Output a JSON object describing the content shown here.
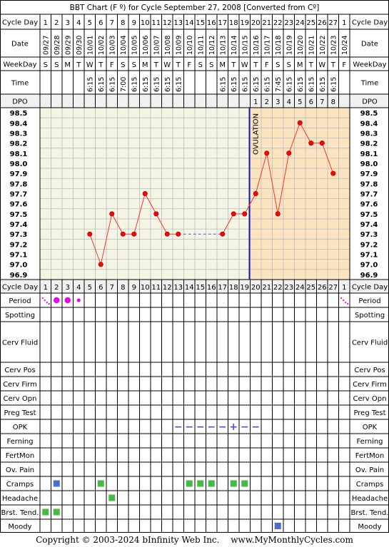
{
  "title": "BBT Chart (F º) for Cycle September 27, 2008  [Converted from Cº]",
  "row_labels": {
    "cycle_day": "Cycle Day",
    "date": "Date",
    "weekday": "WeekDay",
    "time": "Time",
    "dpo": "DPO"
  },
  "columns": {
    "cycle_days": [
      "1",
      "2",
      "3",
      "4",
      "5",
      "6",
      "7",
      "8",
      "9",
      "10",
      "11",
      "12",
      "13",
      "14",
      "15",
      "16",
      "17",
      "18",
      "19",
      "20",
      "21",
      "22",
      "23",
      "24",
      "25",
      "26",
      "27",
      "1"
    ],
    "dates": [
      "09/27",
      "09/28",
      "09/29",
      "09/30",
      "10/01",
      "10/02",
      "10/03",
      "10/04",
      "10/05",
      "10/06",
      "10/07",
      "10/08",
      "10/09",
      "10/10",
      "10/11",
      "10/12",
      "10/13",
      "10/14",
      "10/15",
      "10/16",
      "10/17",
      "10/18",
      "10/19",
      "10/20",
      "10/21",
      "10/22",
      "10/23",
      "10/24"
    ],
    "weekdays": [
      "S",
      "S",
      "M",
      "T",
      "W",
      "T",
      "F",
      "S",
      "S",
      "M",
      "T",
      "W",
      "T",
      "F",
      "S",
      "S",
      "M",
      "T",
      "W",
      "T",
      "F",
      "S",
      "S",
      "M",
      "T",
      "W",
      "T",
      "F"
    ],
    "times": [
      "",
      "",
      "",
      "",
      "6:15",
      "6:15",
      "6:15",
      "7:00",
      "6:15",
      "6:15",
      "6:15",
      "6:15",
      "6:15",
      "",
      "",
      "",
      "6:15",
      "6:15",
      "6:15",
      "6:15",
      "6:15",
      "7:45",
      "6:15",
      "6:15",
      "6:15",
      "6:15",
      "6:15",
      ""
    ],
    "dpo": [
      "",
      "",
      "",
      "",
      "",
      "",
      "",
      "",
      "",
      "",
      "",
      "",
      "",
      "",
      "",
      "",
      "",
      "",
      "",
      "1",
      "2",
      "3",
      "4",
      "5",
      "6",
      "7",
      "8",
      ""
    ]
  },
  "temp_axis_labels": [
    "98.5",
    "98.4",
    "98.3",
    "98.2",
    "98.1",
    "98.0",
    "97.9",
    "97.8",
    "97.7",
    "97.6",
    "97.5",
    "97.4",
    "97.3",
    "97.2",
    "97.1",
    "97.0",
    "96.9"
  ],
  "ovulation_label": "OVULATION",
  "chart_data": {
    "type": "line",
    "title": "BBT Chart (F º) for Cycle September 27, 2008  [Converted from Cº]",
    "xlabel": "Cycle Day",
    "ylabel": "",
    "ylim": [
      96.9,
      98.5
    ],
    "ovulation_day": 19,
    "coverline_color": "#ff3333",
    "series": [
      {
        "values": [
          null,
          null,
          null,
          null,
          97.3,
          97.0,
          97.5,
          97.3,
          97.3,
          97.7,
          97.5,
          97.3,
          97.3,
          null,
          null,
          null,
          97.3,
          97.5,
          97.5,
          97.7,
          98.1,
          97.5,
          98.1,
          98.4,
          98.2,
          98.2,
          97.9,
          null
        ]
      }
    ],
    "interpolated_gap": [
      13,
      17
    ]
  },
  "symptoms": {
    "labels": {
      "period": "Period",
      "spotting": "Spotting",
      "cerv_fluid": "Cerv Fluid",
      "cerv_pos": "Cerv Pos",
      "cerv_firm": "Cerv Firm",
      "cerv_opn": "Cerv Opn",
      "preg_test": "Preg Test",
      "opk": "OPK",
      "ferning": "Ferning",
      "fertmon": "FertMon",
      "ov_pain": "Ov. Pain",
      "cramps": "Cramps",
      "headache": "Headache",
      "brst_tend": "Brst. Tend.",
      "moody": "Moody"
    },
    "period": [
      {
        "day": 1,
        "level": "spotting"
      },
      {
        "day": 2,
        "level": "heavy"
      },
      {
        "day": 3,
        "level": "heavy"
      },
      {
        "day": 4,
        "level": "light"
      },
      {
        "day": 28,
        "level": "spotting"
      }
    ],
    "opk": [
      {
        "day": 13,
        "mark": "−"
      },
      {
        "day": 14,
        "mark": "−"
      },
      {
        "day": 15,
        "mark": "−"
      },
      {
        "day": 16,
        "mark": "−"
      },
      {
        "day": 17,
        "mark": "−"
      },
      {
        "day": 18,
        "mark": "+"
      },
      {
        "day": 19,
        "mark": "−"
      },
      {
        "day": 20,
        "mark": "−"
      }
    ],
    "cramps": [
      {
        "day": 2,
        "color": "#4a6fd0"
      },
      {
        "day": 6,
        "color": "#44bb44"
      },
      {
        "day": 14,
        "color": "#44bb44"
      },
      {
        "day": 15,
        "color": "#44bb44"
      },
      {
        "day": 16,
        "color": "#44bb44"
      },
      {
        "day": 18,
        "color": "#44bb44"
      },
      {
        "day": 19,
        "color": "#44bb44"
      }
    ],
    "headache": [
      {
        "day": 7,
        "color": "#44bb44"
      }
    ],
    "brst_tend": [
      {
        "day": 1,
        "color": "#44bb44"
      },
      {
        "day": 2,
        "color": "#44bb44"
      }
    ],
    "moody": [
      {
        "day": 22,
        "color": "#4a6fd0"
      }
    ]
  },
  "colors": {
    "pre_ovulation_bg": "#f5f5e6",
    "post_ovulation_bg": "#fbe4bf",
    "grid": "#bdbdbd",
    "ovulation_line": "#1a1aa8",
    "temp_line": "#ff3333",
    "temp_dot": "#ff0000",
    "gap_line": "#5555ff",
    "period_dot": "#ee00ee",
    "opk_mark": "#6a3fd6",
    "header_bg": "#f0f0f0"
  },
  "footer": {
    "copyright": "Copyright © 2003-2024 bInfinity Web Inc.",
    "site": "www.MyMonthlyCycles.com"
  }
}
